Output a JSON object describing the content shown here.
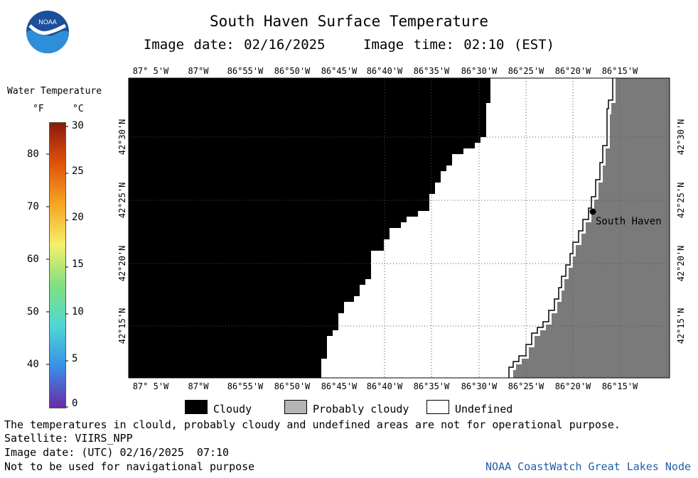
{
  "header": {
    "title": "South Haven Surface Temperature",
    "image_date": "Image date: 02/16/2025",
    "image_time": "Image time: 02:10 (EST)"
  },
  "logo": {
    "text": "NOAA"
  },
  "legend": {
    "title": "Water Temperature",
    "unit_f": "°F",
    "unit_c": "°C",
    "f_ticks": [
      "80",
      "70",
      "60",
      "50",
      "40"
    ],
    "c_ticks": [
      "30",
      "25",
      "20",
      "15",
      "10",
      "5",
      "0"
    ],
    "colors": [
      "#8b1a0a",
      "#e0520b",
      "#f5a623",
      "#f4f06a",
      "#7fe07f",
      "#4fd6d6",
      "#3a8ee6",
      "#6a2aa8"
    ]
  },
  "map": {
    "lon_labels": [
      "87° 5'W",
      "87°W",
      "86°55'W",
      "86°50'W",
      "86°45'W",
      "86°40'W",
      "86°35'W",
      "86°30'W",
      "86°25'W",
      "86°20'W",
      "86°15'W"
    ],
    "lat_labels": [
      "42°30'N",
      "42°25'N",
      "42°20'N",
      "42°15'N"
    ],
    "place_label": "South Haven",
    "colors": {
      "cloudy": "#000000",
      "land": "#7a7a7a",
      "undefined": "#ffffff"
    }
  },
  "key": {
    "cloudy": "Cloudy",
    "probably_cloudy": "Probably cloudy",
    "undefined": "Undefined"
  },
  "footer": {
    "note": "The temperatures in clould, probably cloudy and undefined areas are not for operational purpose.",
    "satellite": "Satellite: VIIRS_NPP",
    "utc_date": "Image date: (UTC) 02/16/2025  07:10",
    "disclaimer": "Not to be used for navigational purpose",
    "brand": "NOAA CoastWatch Great Lakes Node"
  }
}
